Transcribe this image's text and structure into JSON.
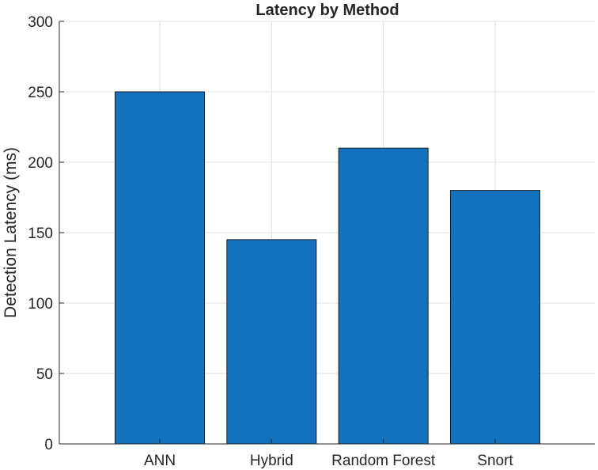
{
  "chart_data": {
    "type": "bar",
    "title": "Latency by Method",
    "xlabel": "",
    "ylabel": "Detection Latency (ms)",
    "categories": [
      "ANN",
      "Hybrid",
      "Random Forest",
      "Snort"
    ],
    "values": [
      250,
      145,
      210,
      180
    ],
    "ylim": [
      0,
      300
    ],
    "yticks": [
      0,
      50,
      100,
      150,
      200,
      250,
      300
    ],
    "grid": true,
    "legend": "none",
    "colors": {
      "bar_fill": "#1372be",
      "bar_edge": "#1c1c1c",
      "grid": "#dfdfdf",
      "axis": "#262626",
      "text": "#262626"
    }
  }
}
